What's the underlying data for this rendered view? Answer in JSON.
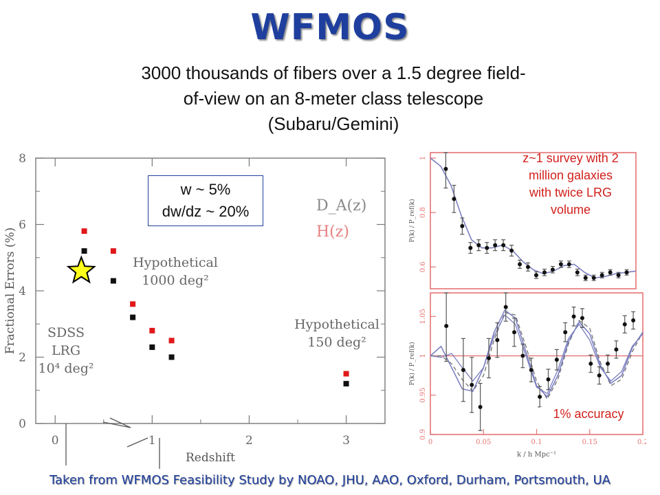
{
  "slide": {
    "title": "WFMOS",
    "subtitle_lines": [
      "3000 thousands of fibers over a 1.5 degree field-",
      "of-view on an 8-meter class telescope",
      "(Subaru/Gemini)"
    ],
    "footer": "Taken from WFMOS Feasibility Study by NOAO, JHU, AAO, Oxford, Durham, Portsmouth, UA",
    "stat_box_lines": [
      "w ~ 5%",
      "dw/dz ~ 20%"
    ],
    "survey_note_lines": [
      "z~1 survey with 2",
      "million galaxies",
      "with twice LRG",
      "volume"
    ],
    "accuracy_note": "1% accuracy"
  },
  "chart_data": [
    {
      "type": "scatter",
      "xlabel": "Redshift",
      "ylabel": "Fractional Errors (%)",
      "xlim": [
        -0.2,
        3.4
      ],
      "ylim": [
        0,
        8
      ],
      "x_ticks": [
        "0",
        "1",
        "2",
        "3"
      ],
      "y_ticks": [
        "0",
        "2",
        "4",
        "6",
        "8"
      ],
      "legend": [
        "D_A(z)",
        "H(z)"
      ],
      "series": [
        {
          "name": "H(z)",
          "color": "#e0181a",
          "x": [
            0.3,
            0.6,
            0.8,
            1.0,
            1.2,
            3.0
          ],
          "y": [
            5.8,
            5.2,
            3.6,
            2.8,
            2.5,
            1.5
          ]
        },
        {
          "name": "D_A(z)",
          "color": "#111111",
          "x": [
            0.3,
            0.6,
            0.8,
            1.0,
            1.2,
            3.0
          ],
          "y": [
            5.2,
            4.3,
            3.2,
            2.3,
            2.0,
            1.2
          ]
        }
      ],
      "star": {
        "x": 0.27,
        "y": 4.6,
        "color": "#ffff1a"
      },
      "annotations": [
        {
          "lines": [
            "Hypothetical",
            "1000 deg²"
          ]
        },
        {
          "lines": [
            "SDSS",
            "LRG",
            "10⁴ deg²"
          ]
        },
        {
          "lines": [
            "Hypothetical",
            "150 deg²"
          ]
        }
      ]
    },
    {
      "type": "line",
      "ylabel": "P(k) / P_ref(k)",
      "xlim": [
        0,
        0.2
      ],
      "ylim": [
        0.52,
        1.02
      ],
      "y_ticks": [
        "0.6",
        "0.8",
        "1"
      ],
      "points": {
        "x": [
          0.015,
          0.023,
          0.031,
          0.039,
          0.047,
          0.055,
          0.063,
          0.071,
          0.079,
          0.087,
          0.095,
          0.103,
          0.111,
          0.119,
          0.127,
          0.135,
          0.143,
          0.151,
          0.159,
          0.167,
          0.175,
          0.183,
          0.191
        ],
        "y": [
          0.96,
          0.85,
          0.75,
          0.67,
          0.68,
          0.67,
          0.68,
          0.68,
          0.66,
          0.61,
          0.6,
          0.57,
          0.58,
          0.59,
          0.61,
          0.61,
          0.58,
          0.56,
          0.56,
          0.57,
          0.58,
          0.57,
          0.58
        ],
        "err": [
          0.07,
          0.05,
          0.03,
          0.02,
          0.02,
          0.02,
          0.02,
          0.02,
          0.02,
          0.015,
          0.015,
          0.012,
          0.012,
          0.012,
          0.012,
          0.012,
          0.012,
          0.01,
          0.01,
          0.01,
          0.01,
          0.01,
          0.01
        ]
      },
      "model": {
        "x": [
          0,
          0.01,
          0.02,
          0.03,
          0.04,
          0.05,
          0.06,
          0.07,
          0.08,
          0.09,
          0.1,
          0.11,
          0.12,
          0.13,
          0.14,
          0.15,
          0.16,
          0.17,
          0.18,
          0.19,
          0.2
        ],
        "y": [
          1.0,
          0.97,
          0.9,
          0.79,
          0.7,
          0.67,
          0.67,
          0.68,
          0.66,
          0.62,
          0.59,
          0.575,
          0.585,
          0.605,
          0.61,
          0.58,
          0.56,
          0.565,
          0.575,
          0.58,
          0.585
        ]
      }
    },
    {
      "type": "line",
      "ylabel": "P(k) / P_ref(k)",
      "xlabel": "k / h Mpc⁻¹",
      "xlim": [
        0,
        0.2
      ],
      "ylim": [
        0.9,
        1.08
      ],
      "x_ticks": [
        "0",
        "0.05",
        "0.1",
        "0.15",
        "0.2"
      ],
      "y_ticks": [
        "0.9",
        "0.95",
        "1",
        "1.05"
      ],
      "reference_y": 1.0,
      "points": {
        "x": [
          0.015,
          0.031,
          0.039,
          0.047,
          0.055,
          0.063,
          0.071,
          0.079,
          0.087,
          0.095,
          0.103,
          0.111,
          0.119,
          0.127,
          0.135,
          0.143,
          0.151,
          0.159,
          0.167,
          0.175,
          0.183,
          0.191
        ],
        "y": [
          1.038,
          0.982,
          0.963,
          0.935,
          0.997,
          1.02,
          1.062,
          1.03,
          1.0,
          0.982,
          0.948,
          0.97,
          0.995,
          1.03,
          1.05,
          1.048,
          0.99,
          0.975,
          0.99,
          1.008,
          1.04,
          1.045
        ],
        "err": [
          0.045,
          0.04,
          0.035,
          0.03,
          0.025,
          0.022,
          0.018,
          0.018,
          0.015,
          0.015,
          0.013,
          0.013,
          0.013,
          0.012,
          0.012,
          0.012,
          0.011,
          0.011,
          0.011,
          0.011,
          0.011,
          0.011
        ]
      },
      "model": {
        "x": [
          0,
          0.01,
          0.02,
          0.03,
          0.04,
          0.05,
          0.06,
          0.07,
          0.08,
          0.09,
          0.1,
          0.11,
          0.12,
          0.13,
          0.14,
          0.15,
          0.16,
          0.17,
          0.18,
          0.19,
          0.2
        ],
        "y": [
          1.0,
          1.012,
          0.985,
          0.958,
          0.955,
          0.985,
          1.03,
          1.058,
          1.048,
          1.005,
          0.962,
          0.948,
          0.975,
          1.018,
          1.043,
          1.028,
          0.988,
          0.965,
          0.975,
          1.01,
          1.03
        ]
      },
      "model_dashed": {
        "x": [
          0,
          0.01,
          0.02,
          0.03,
          0.04,
          0.05,
          0.06,
          0.07,
          0.08,
          0.09,
          0.1,
          0.11,
          0.12,
          0.13,
          0.14,
          0.15,
          0.16,
          0.17,
          0.18,
          0.19,
          0.2
        ],
        "y": [
          1.0,
          1.0,
          0.99,
          0.97,
          0.955,
          0.975,
          1.02,
          1.055,
          1.052,
          1.012,
          0.968,
          0.945,
          0.97,
          1.015,
          1.045,
          1.035,
          0.992,
          0.962,
          0.97,
          1.005,
          1.03
        ]
      },
      "model2": {
        "x": [
          0,
          0.01,
          0.02,
          0.03,
          0.04,
          0.05,
          0.06,
          0.07,
          0.08,
          0.09,
          0.1,
          0.11,
          0.12,
          0.13,
          0.14,
          0.15,
          0.16,
          0.17,
          0.18,
          0.19,
          0.2
        ],
        "y": [
          1.0,
          0.998,
          1.003,
          0.985,
          0.968,
          0.985,
          1.025,
          1.052,
          1.04,
          1.0,
          0.96,
          0.952,
          0.982,
          1.022,
          1.04,
          1.02,
          0.985,
          0.968,
          0.98,
          1.012,
          1.028
        ]
      }
    }
  ]
}
